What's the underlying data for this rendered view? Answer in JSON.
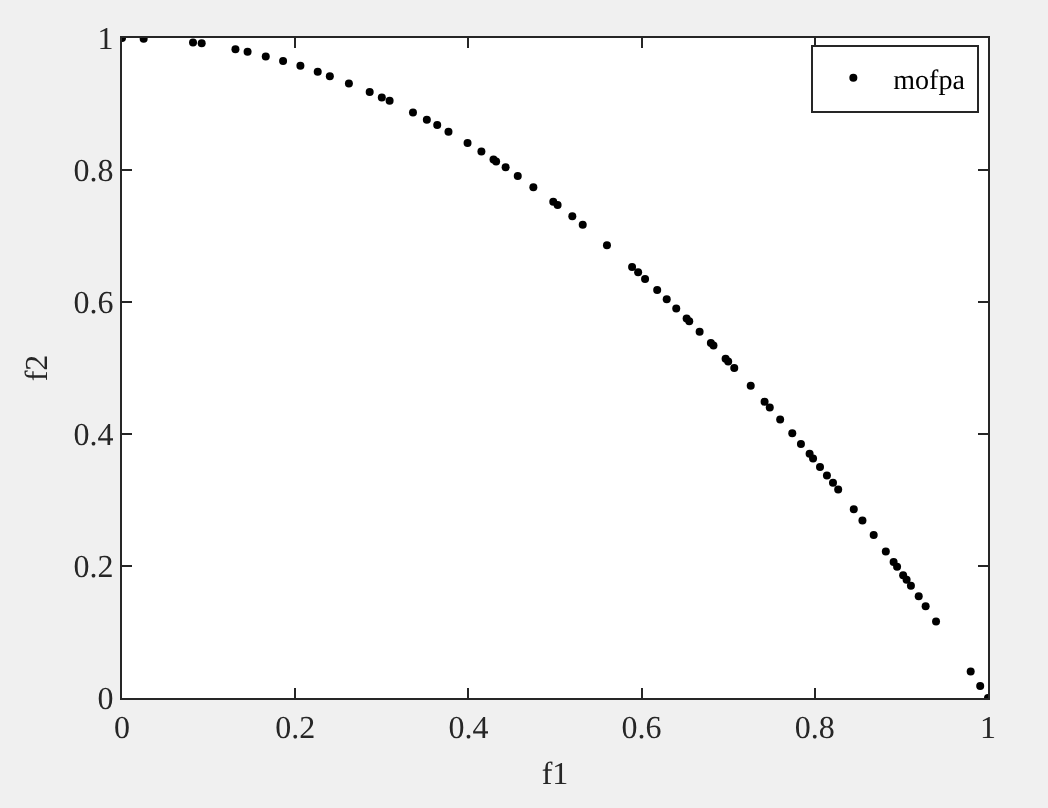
{
  "chart_data": {
    "type": "scatter",
    "xlabel": "f1",
    "ylabel": "f2",
    "xlim": [
      0,
      1
    ],
    "ylim": [
      0,
      1
    ],
    "xticks": [
      0,
      0.2,
      0.4,
      0.6,
      0.8,
      1
    ],
    "yticks": [
      0,
      0.2,
      0.4,
      0.6,
      0.8,
      1
    ],
    "grid": false,
    "legend": "top right",
    "marker": "circle",
    "series": [
      {
        "name": "mofpa",
        "color": "#000000",
        "x": [
          0,
          0.025,
          0.082,
          0.092,
          0.131,
          0.145,
          0.166,
          0.186,
          0.206,
          0.226,
          0.24,
          0.262,
          0.286,
          0.3,
          0.309,
          0.336,
          0.352,
          0.364,
          0.377,
          0.399,
          0.415,
          0.429,
          0.432,
          0.443,
          0.457,
          0.475,
          0.498,
          0.503,
          0.52,
          0.532,
          0.56,
          0.589,
          0.596,
          0.604,
          0.618,
          0.629,
          0.64,
          0.652,
          0.655,
          0.667,
          0.68,
          0.683,
          0.697,
          0.7,
          0.707,
          0.726,
          0.742,
          0.748,
          0.76,
          0.774,
          0.784,
          0.794,
          0.798,
          0.806,
          0.814,
          0.821,
          0.827,
          0.845,
          0.855,
          0.868,
          0.882,
          0.891,
          0.895,
          0.902,
          0.906,
          0.911,
          0.92,
          0.928,
          0.94,
          0.98,
          0.991,
          1.0
        ],
        "values": [
          1,
          0.999,
          0.993,
          0.992,
          0.983,
          0.979,
          0.972,
          0.965,
          0.958,
          0.949,
          0.942,
          0.931,
          0.918,
          0.91,
          0.905,
          0.887,
          0.876,
          0.868,
          0.858,
          0.841,
          0.828,
          0.816,
          0.813,
          0.804,
          0.791,
          0.774,
          0.752,
          0.747,
          0.73,
          0.717,
          0.686,
          0.653,
          0.645,
          0.635,
          0.618,
          0.604,
          0.59,
          0.575,
          0.571,
          0.555,
          0.538,
          0.534,
          0.514,
          0.51,
          0.5,
          0.473,
          0.449,
          0.44,
          0.422,
          0.401,
          0.385,
          0.37,
          0.363,
          0.35,
          0.337,
          0.326,
          0.316,
          0.286,
          0.269,
          0.247,
          0.222,
          0.206,
          0.199,
          0.186,
          0.179,
          0.17,
          0.154,
          0.139,
          0.116,
          0.04,
          0.018,
          0
        ]
      }
    ]
  }
}
